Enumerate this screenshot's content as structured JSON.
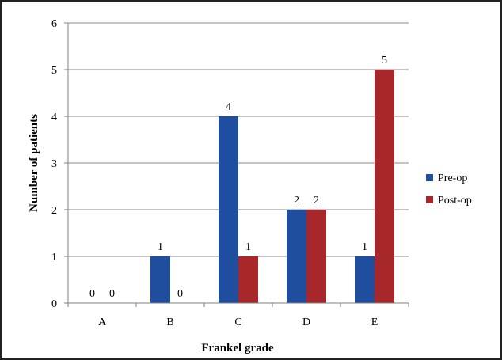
{
  "chart_data": {
    "type": "bar",
    "title": "",
    "xlabel": "Frankel grade",
    "ylabel": "Number of patients",
    "categories": [
      "A",
      "B",
      "C",
      "D",
      "E"
    ],
    "series": [
      {
        "name": "Pre-op",
        "values": [
          0,
          1,
          4,
          2,
          1
        ],
        "color": "#1f4e9e"
      },
      {
        "name": "Post-op",
        "values": [
          0,
          0,
          1,
          2,
          5
        ],
        "color": "#a8272b"
      }
    ],
    "ylim": [
      0,
      6
    ],
    "yticks": [
      "0",
      "1",
      "2",
      "3",
      "4",
      "5",
      "6"
    ],
    "grid": true,
    "legend": "right"
  }
}
